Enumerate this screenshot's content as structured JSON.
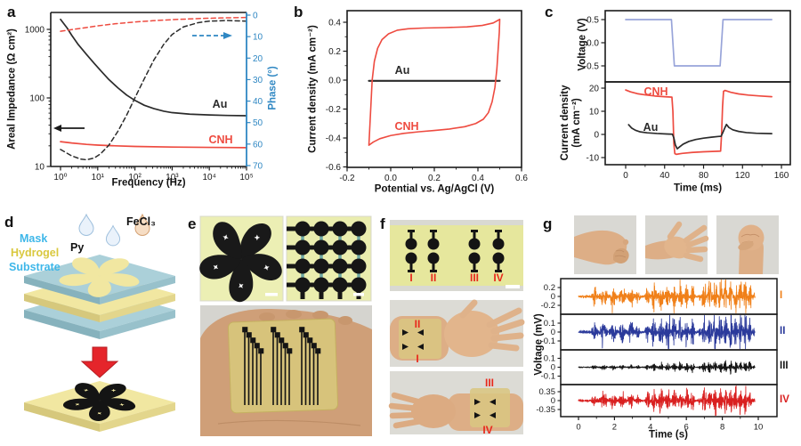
{
  "figure": {
    "background": "#ffffff"
  },
  "colors": {
    "au_black": "#2b2b2b",
    "cnh_red": "#ee4b40",
    "phase_axis_blue": "#2f87c3",
    "pulse_blue": "#98a4d9",
    "emg_orange": "#f08019",
    "emg_blue": "#2b3a9b",
    "emg_black": "#161616",
    "emg_red": "#d92020",
    "red_annotation": "#e8291c",
    "mask_blue": "#abd0d9",
    "hydrogel_yellow": "#f1e7a1",
    "film_yellow": "#e6e79d",
    "label_blue": "#3eb7e9",
    "label_yellow": "#d9c83e",
    "scale_bar": "#ffffff"
  },
  "panels": {
    "a": {
      "letter": "a",
      "xlabel": "Frequency (Hz)",
      "ylabel_left": "Areal Impedance (Ω cm²)",
      "ylabel_right": "Phase (°)",
      "series_au": "Au",
      "series_cnh": "CNH"
    },
    "b": {
      "letter": "b",
      "xlabel": "Potential vs. Ag/AgCl (V)",
      "ylabel": "Current density (mA cm⁻²)",
      "series_au": "Au",
      "series_cnh": "CNH"
    },
    "c": {
      "letter": "c",
      "xlabel": "Time (ms)",
      "ylabel_top": "Voltage (V)",
      "ylabel_bottom_1": "Current density",
      "ylabel_bottom_2": "(mA cm⁻²)",
      "series_au": "Au",
      "series_cnh": "CNH"
    },
    "d": {
      "letter": "d",
      "labels": {
        "mask": "Mask",
        "hydrogel": "Hydrogel",
        "substrate": "Substrate",
        "py": "Py",
        "fecl3": "FeCl₃"
      }
    },
    "e": {
      "letter": "e"
    },
    "f": {
      "letter": "f",
      "film_labels": [
        "I",
        "II",
        "III",
        "IV"
      ],
      "arm1_top": "II",
      "arm1_bottom": "I",
      "arm2_top": "III",
      "arm2_bottom": "IV"
    },
    "g": {
      "letter": "g",
      "ylabel": "Voltage (mV)",
      "xlabel": "Time (s)"
    }
  },
  "chart_data": [
    {
      "id": "a",
      "type": "line",
      "xlabel": "Frequency (Hz)",
      "xscale": "log",
      "xlim": [
        1,
        100000
      ],
      "xticks": [
        "10⁰",
        "10¹",
        "10²",
        "10³",
        "10⁴",
        "10⁵"
      ],
      "left_axis": {
        "label": "Areal Impedance (Ω cm²)",
        "scale": "log",
        "ylim": [
          10,
          1800
        ],
        "ticks": [
          "10",
          "100",
          "1000"
        ]
      },
      "right_axis": {
        "label": "Phase (°)",
        "ylim": [
          0,
          70
        ],
        "inverted": true,
        "ticks": [
          "0",
          "10",
          "20",
          "30",
          "40",
          "50",
          "60",
          "70"
        ],
        "color": "#2f87c3"
      },
      "series": [
        {
          "name": "Au impedance",
          "axis": "left",
          "style": "solid",
          "color": "#2b2b2b",
          "points": [
            [
              1,
              1400
            ],
            [
              1.5,
              1050
            ],
            [
              2,
              820
            ],
            [
              3,
              600
            ],
            [
              5,
              430
            ],
            [
              8,
              320
            ],
            [
              12,
              250
            ],
            [
              20,
              185
            ],
            [
              35,
              140
            ],
            [
              60,
              110
            ],
            [
              100,
              92
            ],
            [
              180,
              78
            ],
            [
              320,
              70
            ],
            [
              600,
              64
            ],
            [
              1000,
              61
            ],
            [
              3000,
              58
            ],
            [
              10000,
              56.5
            ],
            [
              30000,
              55.5
            ],
            [
              100000,
              55
            ]
          ]
        },
        {
          "name": "CNH impedance",
          "axis": "left",
          "style": "solid",
          "color": "#ee4b40",
          "points": [
            [
              1,
              23
            ],
            [
              2,
              22
            ],
            [
              5,
              21
            ],
            [
              10,
              20.5
            ],
            [
              30,
              20
            ],
            [
              100,
              19.6
            ],
            [
              1000,
              19.2
            ],
            [
              10000,
              19
            ],
            [
              100000,
              18.8
            ]
          ]
        },
        {
          "name": "Au phase",
          "axis": "right",
          "style": "dashed",
          "color": "#2b2b2b",
          "points": [
            [
              1,
              62.5
            ],
            [
              2,
              65.5
            ],
            [
              3.5,
              67
            ],
            [
              5,
              67.3
            ],
            [
              8,
              66.5
            ],
            [
              12,
              64.5
            ],
            [
              20,
              60.5
            ],
            [
              35,
              54
            ],
            [
              60,
              46.5
            ],
            [
              100,
              38.5
            ],
            [
              180,
              29.5
            ],
            [
              320,
              21
            ],
            [
              600,
              13.5
            ],
            [
              1000,
              9
            ],
            [
              2000,
              5.5
            ],
            [
              5000,
              3.5
            ],
            [
              10000,
              2.8
            ],
            [
              30000,
              2.5
            ],
            [
              100000,
              2.8
            ]
          ]
        },
        {
          "name": "CNH phase",
          "axis": "right",
          "style": "dashed",
          "color": "#ee4b40",
          "points": [
            [
              1,
              7.5
            ],
            [
              3,
              6.3
            ],
            [
              10,
              5
            ],
            [
              30,
              4
            ],
            [
              100,
              3.2
            ],
            [
              300,
              2.6
            ],
            [
              1000,
              2.1
            ],
            [
              5000,
              1.6
            ],
            [
              20000,
              1.3
            ],
            [
              100000,
              1.1
            ]
          ]
        }
      ]
    },
    {
      "id": "b",
      "type": "line",
      "xlabel": "Potential vs. Ag/AgCl (V)",
      "ylabel": "Current density (mA cm⁻²)",
      "xlim": [
        -0.2,
        0.6
      ],
      "ylim": [
        -0.6,
        0.48
      ],
      "xticks": [
        "-0.2",
        "0.0",
        "0.2",
        "0.4",
        "0.6"
      ],
      "xtick_vals": [
        -0.2,
        0,
        0.2,
        0.4,
        0.6
      ],
      "yticks": [
        "0.4",
        "0.2",
        "0.0",
        "-0.2",
        "-0.4",
        "-0.6"
      ],
      "ytick_vals": [
        0.4,
        0.2,
        0,
        -0.2,
        -0.4,
        -0.6
      ],
      "series": [
        {
          "name": "Au",
          "color": "#2b2b2b",
          "points": [
            [
              -0.1,
              -0.005
            ],
            [
              0.5,
              -0.005
            ]
          ]
        },
        {
          "name": "CNH",
          "color": "#ee4b40",
          "points": [
            [
              -0.1,
              -0.45
            ],
            [
              -0.095,
              -0.3
            ],
            [
              -0.09,
              -0.15
            ],
            [
              -0.085,
              0.0
            ],
            [
              -0.075,
              0.13
            ],
            [
              -0.06,
              0.22
            ],
            [
              -0.04,
              0.28
            ],
            [
              -0.01,
              0.32
            ],
            [
              0.03,
              0.345
            ],
            [
              0.08,
              0.355
            ],
            [
              0.15,
              0.36
            ],
            [
              0.25,
              0.363
            ],
            [
              0.35,
              0.368
            ],
            [
              0.42,
              0.378
            ],
            [
              0.47,
              0.395
            ],
            [
              0.5,
              0.42
            ],
            [
              0.498,
              0.33
            ],
            [
              0.493,
              0.22
            ],
            [
              0.487,
              0.08
            ],
            [
              0.478,
              -0.05
            ],
            [
              0.465,
              -0.15
            ],
            [
              0.448,
              -0.225
            ],
            [
              0.425,
              -0.27
            ],
            [
              0.39,
              -0.3
            ],
            [
              0.34,
              -0.322
            ],
            [
              0.27,
              -0.338
            ],
            [
              0.2,
              -0.348
            ],
            [
              0.13,
              -0.357
            ],
            [
              0.06,
              -0.368
            ],
            [
              0.0,
              -0.383
            ],
            [
              -0.05,
              -0.405
            ],
            [
              -0.08,
              -0.428
            ],
            [
              -0.1,
              -0.45
            ]
          ]
        }
      ]
    },
    {
      "id": "c",
      "type": "line",
      "xlabel": "Time (ms)",
      "xlim": [
        -20,
        170
      ],
      "xticks": [
        "0",
        "40",
        "80",
        "120",
        "160"
      ],
      "xtick_vals": [
        0,
        40,
        80,
        120,
        160
      ],
      "top_axis": {
        "label": "Voltage (V)",
        "ticks": [
          "0.5",
          "0.0",
          "-0.5"
        ],
        "tick_vals": [
          0.5,
          0,
          -0.5
        ]
      },
      "bottom_axis": {
        "label": "Current density (mA cm⁻²)",
        "ticks": [
          "20",
          "10",
          "0",
          "-10"
        ],
        "tick_vals": [
          20,
          10,
          0,
          -10
        ]
      },
      "series": [
        {
          "name": "Voltage pulse",
          "pane": "top",
          "color": "#98a4d9",
          "points": [
            [
              0,
              0.5
            ],
            [
              47,
              0.5
            ],
            [
              50,
              -0.5
            ],
            [
              97,
              -0.5
            ],
            [
              100,
              0.5
            ],
            [
              150,
              0.5
            ]
          ]
        },
        {
          "name": "CNH current",
          "pane": "bottom",
          "color": "#ee4b40",
          "points": [
            [
              0,
              19.2
            ],
            [
              5,
              18.4
            ],
            [
              12,
              17.6
            ],
            [
              20,
              17.1
            ],
            [
              30,
              16.6
            ],
            [
              40,
              16.3
            ],
            [
              47.5,
              16.1
            ],
            [
              48.5,
              10
            ],
            [
              49.5,
              -4
            ],
            [
              50.5,
              -8.3
            ],
            [
              52,
              -8.6
            ],
            [
              58,
              -8.2
            ],
            [
              68,
              -7.8
            ],
            [
              80,
              -7.5
            ],
            [
              92,
              -7.3
            ],
            [
              97.5,
              -7.2
            ],
            [
              98.5,
              0
            ],
            [
              99.5,
              12
            ],
            [
              100.5,
              18.6
            ],
            [
              102,
              19
            ],
            [
              108,
              18.2
            ],
            [
              116,
              17.5
            ],
            [
              126,
              17
            ],
            [
              138,
              16.6
            ],
            [
              150,
              16.3
            ]
          ]
        },
        {
          "name": "Au current",
          "pane": "bottom",
          "color": "#2b2b2b",
          "points": [
            [
              3,
              4.2
            ],
            [
              6,
              2.8
            ],
            [
              10,
              1.8
            ],
            [
              15,
              1.1
            ],
            [
              22,
              0.7
            ],
            [
              32,
              0.4
            ],
            [
              42,
              0.2
            ],
            [
              48,
              0.1
            ],
            [
              49.5,
              -1.5
            ],
            [
              51,
              -4.5
            ],
            [
              53,
              -6.2
            ],
            [
              55,
              -5.5
            ],
            [
              59,
              -4.2
            ],
            [
              65,
              -3
            ],
            [
              72,
              -2.2
            ],
            [
              80,
              -1.6
            ],
            [
              88,
              -1.2
            ],
            [
              95,
              -0.9
            ],
            [
              98,
              -0.8
            ],
            [
              100,
              1
            ],
            [
              102,
              3
            ],
            [
              103.5,
              4.3
            ],
            [
              106,
              3
            ],
            [
              110,
              2
            ],
            [
              116,
              1.3
            ],
            [
              124,
              0.8
            ],
            [
              134,
              0.5
            ],
            [
              150,
              0.35
            ]
          ]
        }
      ]
    },
    {
      "id": "g",
      "type": "line",
      "xlabel": "Time (s)",
      "ylabel": "Voltage (mV)",
      "xlim": [
        0,
        10
      ],
      "xticks": [
        "0",
        "2",
        "4",
        "6",
        "8",
        "10"
      ],
      "xtick_vals": [
        0,
        2,
        4,
        6,
        8,
        10
      ],
      "description": "Four stacked EMG traces recorded at electrode positions I-IV during three hand gestures; activity bursts near 1-3 s, 4-6 s and 7-9.5 s",
      "traces": [
        {
          "label": "I",
          "color": "#f08019",
          "amp_mV": 0.3,
          "tick_mV": 0.2,
          "yticks": [
            "0.2",
            "0",
            "-0.2"
          ],
          "bursts": [
            [
              0.9,
              3.2,
              0.6
            ],
            [
              3.9,
              6.3,
              0.85
            ],
            [
              6.9,
              9.5,
              1.0
            ]
          ]
        },
        {
          "label": "II",
          "color": "#2b3a9b",
          "amp_mV": 0.17,
          "tick_mV": 0.1,
          "yticks": [
            "0.1",
            "0",
            "-0.1"
          ],
          "bursts": [
            [
              0.9,
              3.2,
              0.55
            ],
            [
              3.9,
              6.3,
              0.8
            ],
            [
              6.9,
              9.5,
              1.0
            ]
          ]
        },
        {
          "label": "III",
          "color": "#161616",
          "amp_mV": 0.06,
          "tick_mV": 0.1,
          "yticks": [
            "0.1",
            "0",
            "-0.1"
          ],
          "bursts": [
            [
              0.9,
              3.2,
              0.35
            ],
            [
              3.9,
              6.3,
              0.7
            ],
            [
              6.9,
              9.5,
              1.0
            ]
          ]
        },
        {
          "label": "IV",
          "color": "#d92020",
          "amp_mV": 0.45,
          "tick_mV": 0.35,
          "yticks": [
            "0.35",
            "0",
            "-0.35"
          ],
          "bursts": [
            [
              0.9,
              3.2,
              0.55
            ],
            [
              3.9,
              6.3,
              0.85
            ],
            [
              6.9,
              9.5,
              1.0
            ]
          ]
        }
      ]
    }
  ]
}
